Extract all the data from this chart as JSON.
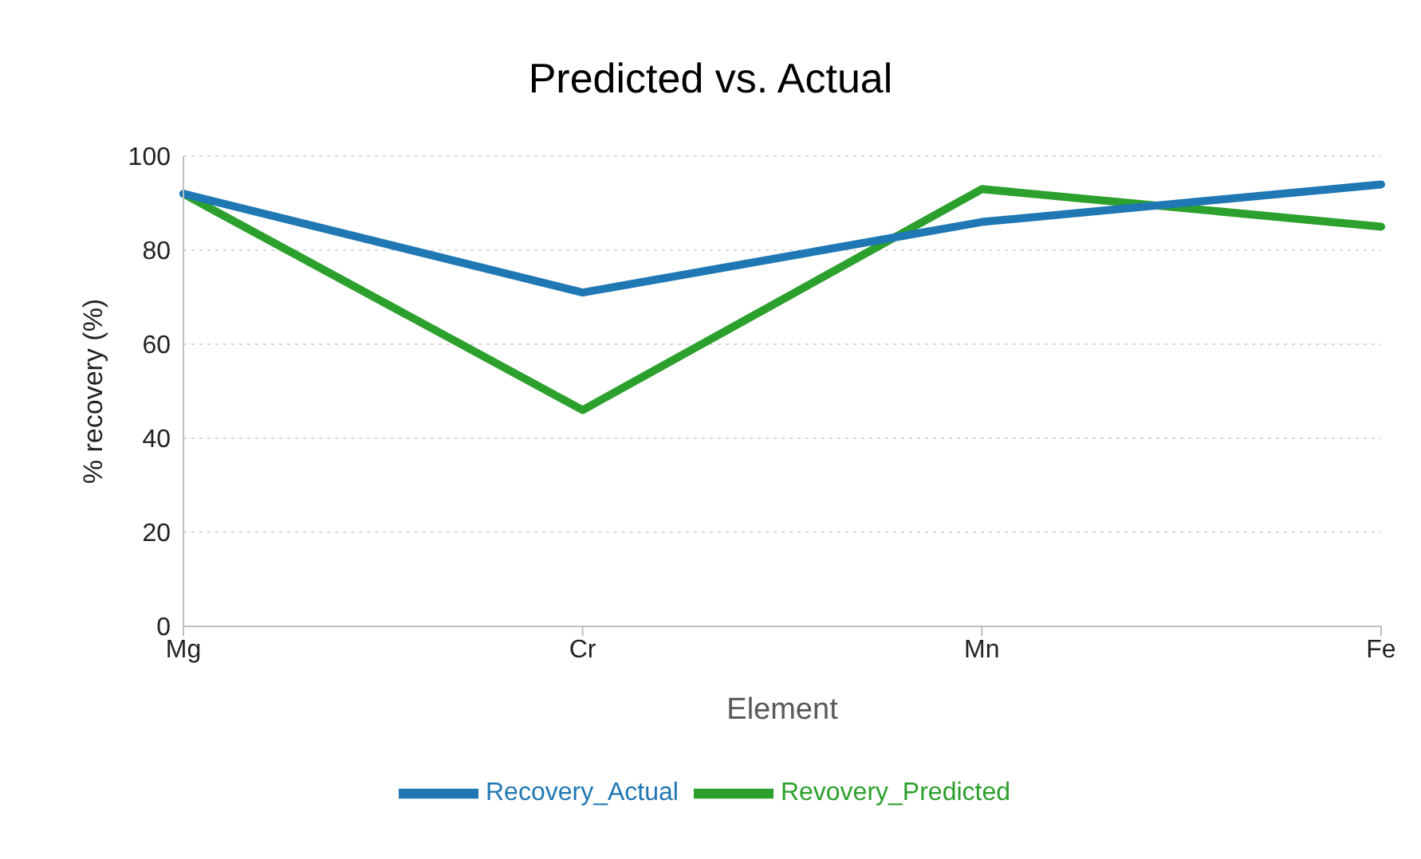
{
  "chart_data": {
    "type": "line",
    "title": "Predicted vs. Actual",
    "xlabel": "Element",
    "ylabel": "% recovery (%)",
    "categories": [
      "Mg",
      "Cr",
      "Mn",
      "Fe"
    ],
    "series": [
      {
        "name": "Revovery_Predicted",
        "color": "#2ca02c",
        "values": [
          92,
          46,
          93,
          85
        ]
      },
      {
        "name": "Recovery_Actual",
        "color": "#1f77b4",
        "values": [
          92,
          71,
          86,
          94
        ]
      }
    ],
    "ylim": [
      0,
      100
    ],
    "yticks": [
      0,
      20,
      40,
      60,
      80,
      100
    ],
    "grid": "y",
    "legend": "bottom",
    "marker": "none",
    "line_style": "solid"
  }
}
